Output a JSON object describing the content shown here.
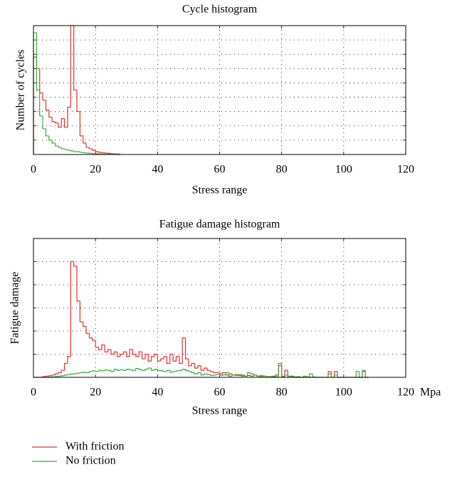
{
  "chart_data": [
    {
      "type": "histogram",
      "title": "Cycle histogram",
      "xlabel": "Stress range",
      "ylabel": "Number of cycles",
      "bins": [
        0,
        1,
        2,
        3,
        4,
        5,
        6,
        7,
        8,
        9,
        10,
        11,
        12,
        13,
        14,
        15,
        16,
        17,
        18,
        19,
        20,
        21,
        22,
        23,
        24,
        25,
        26,
        27,
        28
      ],
      "series": [
        {
          "name": "With friction",
          "color": "#e8322b",
          "values": [
            6.8,
            6.0,
            4.3,
            3.8,
            3.1,
            2.6,
            2.3,
            2.2,
            1.9,
            2.5,
            1.9,
            3.3,
            9.0,
            4.5,
            3.0,
            1.3,
            0.8,
            0.5,
            0.4,
            0.3,
            0.2,
            0.15,
            0.12,
            0.1,
            0.08,
            0.06,
            0.04,
            0.03
          ]
        },
        {
          "name": "No friction",
          "color": "#3aad3a",
          "values": [
            8.5,
            4.5,
            2.7,
            1.8,
            1.3,
            1.0,
            0.8,
            0.6,
            0.5,
            0.4,
            0.35,
            0.3,
            0.25,
            0.2,
            0.2,
            0.15,
            0.12,
            0.1,
            0.08,
            0.06,
            0.05,
            0.04,
            0.03,
            0.02,
            0.02,
            0.01,
            0.01,
            0
          ]
        }
      ],
      "xlim": [
        0,
        120
      ],
      "xticks": [
        0,
        20,
        40,
        60,
        80,
        100,
        120
      ],
      "ylim": [
        0,
        9
      ],
      "yticks": [
        1,
        2,
        3,
        4,
        5,
        6,
        7,
        8
      ],
      "grid": true
    },
    {
      "type": "histogram",
      "title": "Fatigue damage histogram",
      "xlabel": "Stress range",
      "ylabel": "Fatigue damage",
      "xunit": "Mpa",
      "bins": [
        0,
        1,
        2,
        3,
        4,
        5,
        6,
        7,
        8,
        9,
        10,
        11,
        12,
        13,
        14,
        15,
        16,
        17,
        18,
        19,
        20,
        21,
        22,
        23,
        24,
        25,
        26,
        27,
        28,
        29,
        30,
        31,
        32,
        33,
        34,
        35,
        36,
        37,
        38,
        39,
        40,
        41,
        42,
        43,
        44,
        45,
        46,
        47,
        48,
        49,
        50,
        51,
        52,
        53,
        54,
        55,
        56,
        57,
        58,
        59,
        60,
        61,
        62,
        63,
        64,
        65,
        66,
        67,
        68,
        69,
        70,
        71,
        72,
        73,
        74,
        75,
        76,
        77,
        78,
        79,
        80,
        81,
        82,
        83,
        84,
        85,
        86,
        87,
        88,
        89,
        90,
        91,
        92,
        93,
        94,
        95,
        96,
        97,
        98,
        99,
        100,
        101,
        102,
        103,
        104,
        105,
        106,
        107,
        108
      ],
      "series": [
        {
          "color": "#e8322b",
          "values": [
            0,
            0,
            0,
            0.03,
            0.05,
            0.07,
            0.1,
            0.15,
            0.2,
            0.3,
            0.6,
            0.9,
            5.0,
            4.8,
            3.3,
            2.4,
            2.2,
            1.9,
            1.7,
            1.6,
            1.3,
            1.2,
            1.4,
            1.1,
            1.2,
            1.0,
            1.1,
            0.9,
            1.0,
            1.1,
            0.9,
            1.2,
            1.0,
            0.9,
            1.1,
            0.8,
            1.0,
            0.7,
            0.9,
            1.0,
            0.7,
            0.8,
            0.9,
            0.6,
            1.0,
            0.7,
            0.9,
            0.6,
            1.7,
            0.8,
            0.5,
            0.6,
            0.4,
            0.5,
            0.3,
            0.4,
            0.3,
            0.25,
            0.2,
            0.2,
            0.15,
            0.2,
            0.1,
            0.15,
            0.1,
            0.12,
            0.08,
            0.1,
            0.05,
            0.08,
            0.05,
            0.1,
            0.05,
            0.03,
            0.05,
            0.02,
            0.03,
            0.02,
            0.1,
            0.5,
            0.02,
            0.3,
            0,
            0.05,
            0,
            0,
            0,
            0,
            0,
            0,
            0,
            0,
            0,
            0,
            0,
            0.25,
            0,
            0.25,
            0,
            0,
            0,
            0,
            0,
            0,
            0,
            0,
            0.25,
            0
          ]
        },
        {
          "color": "#3aad3a",
          "values": [
            0,
            0,
            0,
            0,
            0,
            0.01,
            0.02,
            0.03,
            0.05,
            0.07,
            0.1,
            0.12,
            0.15,
            0.15,
            0.18,
            0.2,
            0.22,
            0.2,
            0.25,
            0.28,
            0.25,
            0.3,
            0.28,
            0.32,
            0.3,
            0.25,
            0.35,
            0.3,
            0.33,
            0.3,
            0.35,
            0.32,
            0.3,
            0.38,
            0.33,
            0.3,
            0.35,
            0.4,
            0.3,
            0.35,
            0.3,
            0.28,
            0.25,
            0.3,
            0.22,
            0.25,
            0.28,
            0.3,
            0.35,
            0.3,
            0.25,
            0.2,
            0.15,
            0.2,
            0.1,
            0.15,
            0.12,
            0.08,
            0.1,
            0.12,
            0.08,
            0.1,
            0.2,
            0.05,
            0.1,
            0.08,
            0.12,
            0.05,
            0.05,
            0.2,
            0.15,
            0.1,
            0.05,
            0.08,
            0.05,
            0.03,
            0.02,
            0.05,
            0.02,
            0.6,
            0.05,
            0.1,
            0.05,
            0.03,
            0.02,
            0.03,
            0,
            0.05,
            0.02,
            0.15,
            0.02,
            0,
            0,
            0,
            0,
            0.15,
            0,
            0.1,
            0,
            0,
            0,
            0,
            0,
            0,
            0.25,
            0,
            0.3,
            0
          ]
        }
      ],
      "xlim": [
        0,
        120
      ],
      "xticks": [
        0,
        20,
        40,
        60,
        80,
        100,
        120
      ],
      "ylim": [
        0,
        6
      ],
      "yticks": [
        1,
        2,
        3,
        4,
        5
      ],
      "grid": true
    }
  ]
}
